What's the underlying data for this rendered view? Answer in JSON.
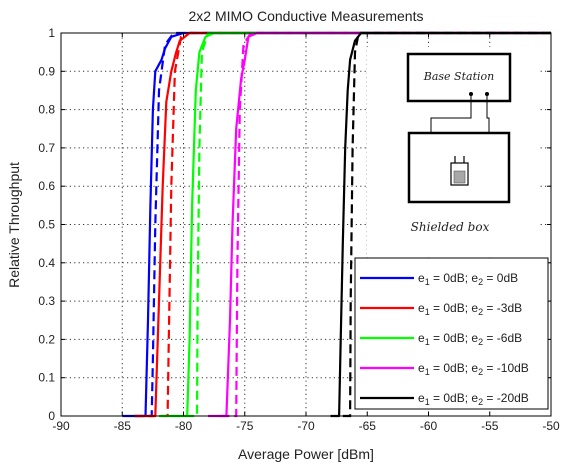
{
  "chart_data": {
    "type": "line",
    "title": "2x2 MIMO Conductive Measurements",
    "xlabel": "Average Power [dBm]",
    "ylabel": "Relative Throughput",
    "xlim": [
      -90,
      -50
    ],
    "ylim": [
      0,
      1
    ],
    "x_ticks": [
      "-90",
      "-85",
      "-80",
      "-75",
      "-70",
      "-65",
      "-60",
      "-55",
      "-50"
    ],
    "y_ticks": [
      "0",
      "0.1",
      "0.2",
      "0.3",
      "0.4",
      "0.5",
      "0.6",
      "0.7",
      "0.8",
      "0.9",
      "1"
    ],
    "grid": true,
    "legend_position": "bottom-right",
    "series": [
      {
        "name_parts": [
          "e",
          "1",
          " = 0dB; e",
          "2",
          " = 0dB"
        ],
        "color": "#0000ff",
        "solid": [
          [
            -85.0,
            0.0
          ],
          [
            -83.1,
            0.0
          ],
          [
            -82.9,
            0.25
          ],
          [
            -82.7,
            0.55
          ],
          [
            -82.5,
            0.8
          ],
          [
            -82.3,
            0.9
          ],
          [
            -81.8,
            0.93
          ],
          [
            -81.5,
            0.96
          ],
          [
            -81.0,
            0.99
          ],
          [
            -80.0,
            1.0
          ],
          [
            -50.0,
            1.0
          ]
        ],
        "dashed": [
          [
            -84.0,
            0.0
          ],
          [
            -82.6,
            0.0
          ],
          [
            -82.5,
            0.15
          ],
          [
            -82.3,
            0.5
          ],
          [
            -82.0,
            0.85
          ],
          [
            -81.5,
            0.97
          ],
          [
            -80.8,
            1.0
          ],
          [
            -50.0,
            1.0
          ]
        ]
      },
      {
        "name_parts": [
          "e",
          "1",
          " = 0dB; e",
          "2",
          " = -3dB"
        ],
        "color": "#ff0000",
        "solid": [
          [
            -84.0,
            0.0
          ],
          [
            -82.3,
            0.0
          ],
          [
            -82.0,
            0.3
          ],
          [
            -81.7,
            0.6
          ],
          [
            -81.4,
            0.82
          ],
          [
            -81.0,
            0.9
          ],
          [
            -80.6,
            0.95
          ],
          [
            -80.3,
            0.98
          ],
          [
            -79.5,
            1.0
          ],
          [
            -50.0,
            1.0
          ]
        ],
        "dashed": [
          [
            -83.0,
            0.0
          ],
          [
            -81.3,
            0.0
          ],
          [
            -81.2,
            0.2
          ],
          [
            -81.0,
            0.6
          ],
          [
            -80.7,
            0.9
          ],
          [
            -80.2,
            0.99
          ],
          [
            -79.5,
            1.0
          ],
          [
            -50.0,
            1.0
          ]
        ]
      },
      {
        "name_parts": [
          "e",
          "1",
          " = 0dB; e",
          "2",
          " = -6dB"
        ],
        "color": "#00ff00",
        "solid": [
          [
            -82.0,
            0.0
          ],
          [
            -79.7,
            0.0
          ],
          [
            -79.5,
            0.2
          ],
          [
            -79.3,
            0.55
          ],
          [
            -79.0,
            0.85
          ],
          [
            -78.7,
            0.95
          ],
          [
            -78.2,
            0.99
          ],
          [
            -77.5,
            1.0
          ],
          [
            -50.0,
            1.0
          ]
        ],
        "dashed": [
          [
            -81.0,
            0.0
          ],
          [
            -78.9,
            0.0
          ],
          [
            -78.85,
            0.3
          ],
          [
            -78.7,
            0.7
          ],
          [
            -78.5,
            0.95
          ],
          [
            -78.0,
            1.0
          ],
          [
            -50.0,
            1.0
          ]
        ]
      },
      {
        "name_parts": [
          "e",
          "1",
          " = 0dB; e",
          "2",
          " = -10dB"
        ],
        "color": "#ff00ff",
        "solid": [
          [
            -78.0,
            0.0
          ],
          [
            -76.5,
            0.0
          ],
          [
            -76.2,
            0.25
          ],
          [
            -76.0,
            0.5
          ],
          [
            -75.7,
            0.75
          ],
          [
            -75.3,
            0.88
          ],
          [
            -75.0,
            0.93
          ],
          [
            -74.7,
            0.99
          ],
          [
            -74.0,
            1.0
          ],
          [
            -50.0,
            1.0
          ]
        ],
        "dashed": [
          [
            -77.0,
            0.0
          ],
          [
            -75.7,
            0.0
          ],
          [
            -75.6,
            0.4
          ],
          [
            -75.4,
            0.8
          ],
          [
            -75.1,
            0.97
          ],
          [
            -74.5,
            1.0
          ],
          [
            -50.0,
            1.0
          ]
        ]
      },
      {
        "name_parts": [
          "e",
          "1",
          " = 0dB; e",
          "2",
          " = -20dB"
        ],
        "color": "#000000",
        "solid": [
          [
            -68.0,
            0.0
          ],
          [
            -67.3,
            0.0
          ],
          [
            -67.2,
            0.15
          ],
          [
            -67.0,
            0.45
          ],
          [
            -66.8,
            0.7
          ],
          [
            -66.6,
            0.85
          ],
          [
            -66.4,
            0.93
          ],
          [
            -66.0,
            0.98
          ],
          [
            -65.5,
            1.0
          ],
          [
            -50.0,
            1.0
          ]
        ],
        "dashed": [
          [
            -67.0,
            0.0
          ],
          [
            -66.4,
            0.0
          ],
          [
            -66.35,
            0.3
          ],
          [
            -66.2,
            0.7
          ],
          [
            -66.0,
            0.95
          ],
          [
            -65.7,
            1.0
          ],
          [
            -50.0,
            1.0
          ]
        ]
      }
    ],
    "inset": {
      "top_label": "Base Station",
      "bottom_label": "Shielded box"
    }
  }
}
